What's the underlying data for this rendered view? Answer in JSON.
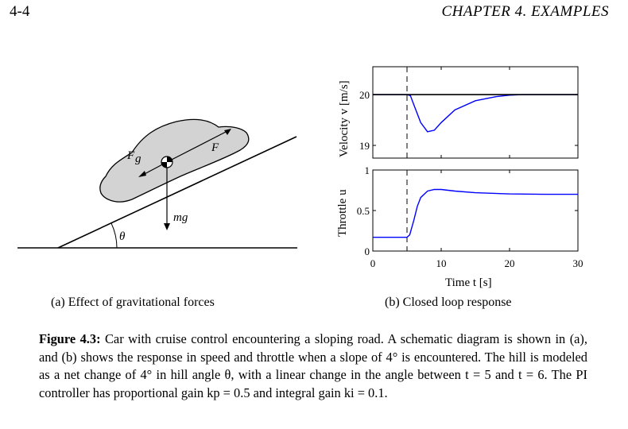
{
  "header": {
    "page_number": "4-4",
    "chapter": "CHAPTER 4.  EXAMPLES"
  },
  "diagram": {
    "force_gravity_label": "F",
    "force_gravity_sub": "g",
    "force_label": "F",
    "weight_label": "mg",
    "angle_label": "θ"
  },
  "chart_data": [
    {
      "type": "line",
      "ylabel": "Velocity v [m/s]",
      "ylim": [
        18.75,
        20.55
      ],
      "xlim": [
        0,
        30
      ],
      "yticks": [
        "19",
        "20"
      ],
      "series": [
        {
          "values_x": [
            0,
            5,
            5.5,
            6,
            7,
            8,
            9,
            10,
            12,
            15,
            18,
            20,
            22,
            25,
            30
          ],
          "values_y": [
            20,
            20,
            19.98,
            19.8,
            19.45,
            19.27,
            19.3,
            19.45,
            19.7,
            19.88,
            19.96,
            19.99,
            20,
            20,
            20
          ],
          "color": "#0000ff"
        },
        {
          "values_x": [
            0,
            30
          ],
          "values_y": [
            20,
            20
          ],
          "color": "#000000"
        }
      ],
      "vline_x": 5
    },
    {
      "type": "line",
      "ylabel": "Throttle u",
      "xlabel": "Time t [s]",
      "ylim": [
        0,
        1
      ],
      "xlim": [
        0,
        30
      ],
      "xticks": [
        "0",
        "10",
        "20",
        "30"
      ],
      "yticks": [
        "0",
        "0.5",
        "1"
      ],
      "series": [
        {
          "values_x": [
            0,
            5,
            5.4,
            6,
            6.5,
            7,
            8,
            9,
            10,
            12,
            15,
            20,
            25,
            30
          ],
          "values_y": [
            0.17,
            0.17,
            0.2,
            0.38,
            0.55,
            0.66,
            0.74,
            0.76,
            0.76,
            0.74,
            0.72,
            0.705,
            0.7,
            0.7
          ],
          "color": "#0000ff"
        }
      ],
      "vline_x": 5
    }
  ],
  "captions": {
    "a": "(a) Effect of gravitational forces",
    "b": "(b) Closed loop response"
  },
  "figure_caption": {
    "label": "Figure 4.3:",
    "text": "Car with cruise control encountering a sloping road.  A schematic diagram is shown in (a), and (b) shows the response in speed and throttle when a slope of 4° is encountered.  The hill is modeled as a net change of 4° in hill angle θ, with a linear change in the angle between t = 5 and t = 6.  The PI controller has proportional gain kp = 0.5 and integral gain ki = 0.1."
  }
}
